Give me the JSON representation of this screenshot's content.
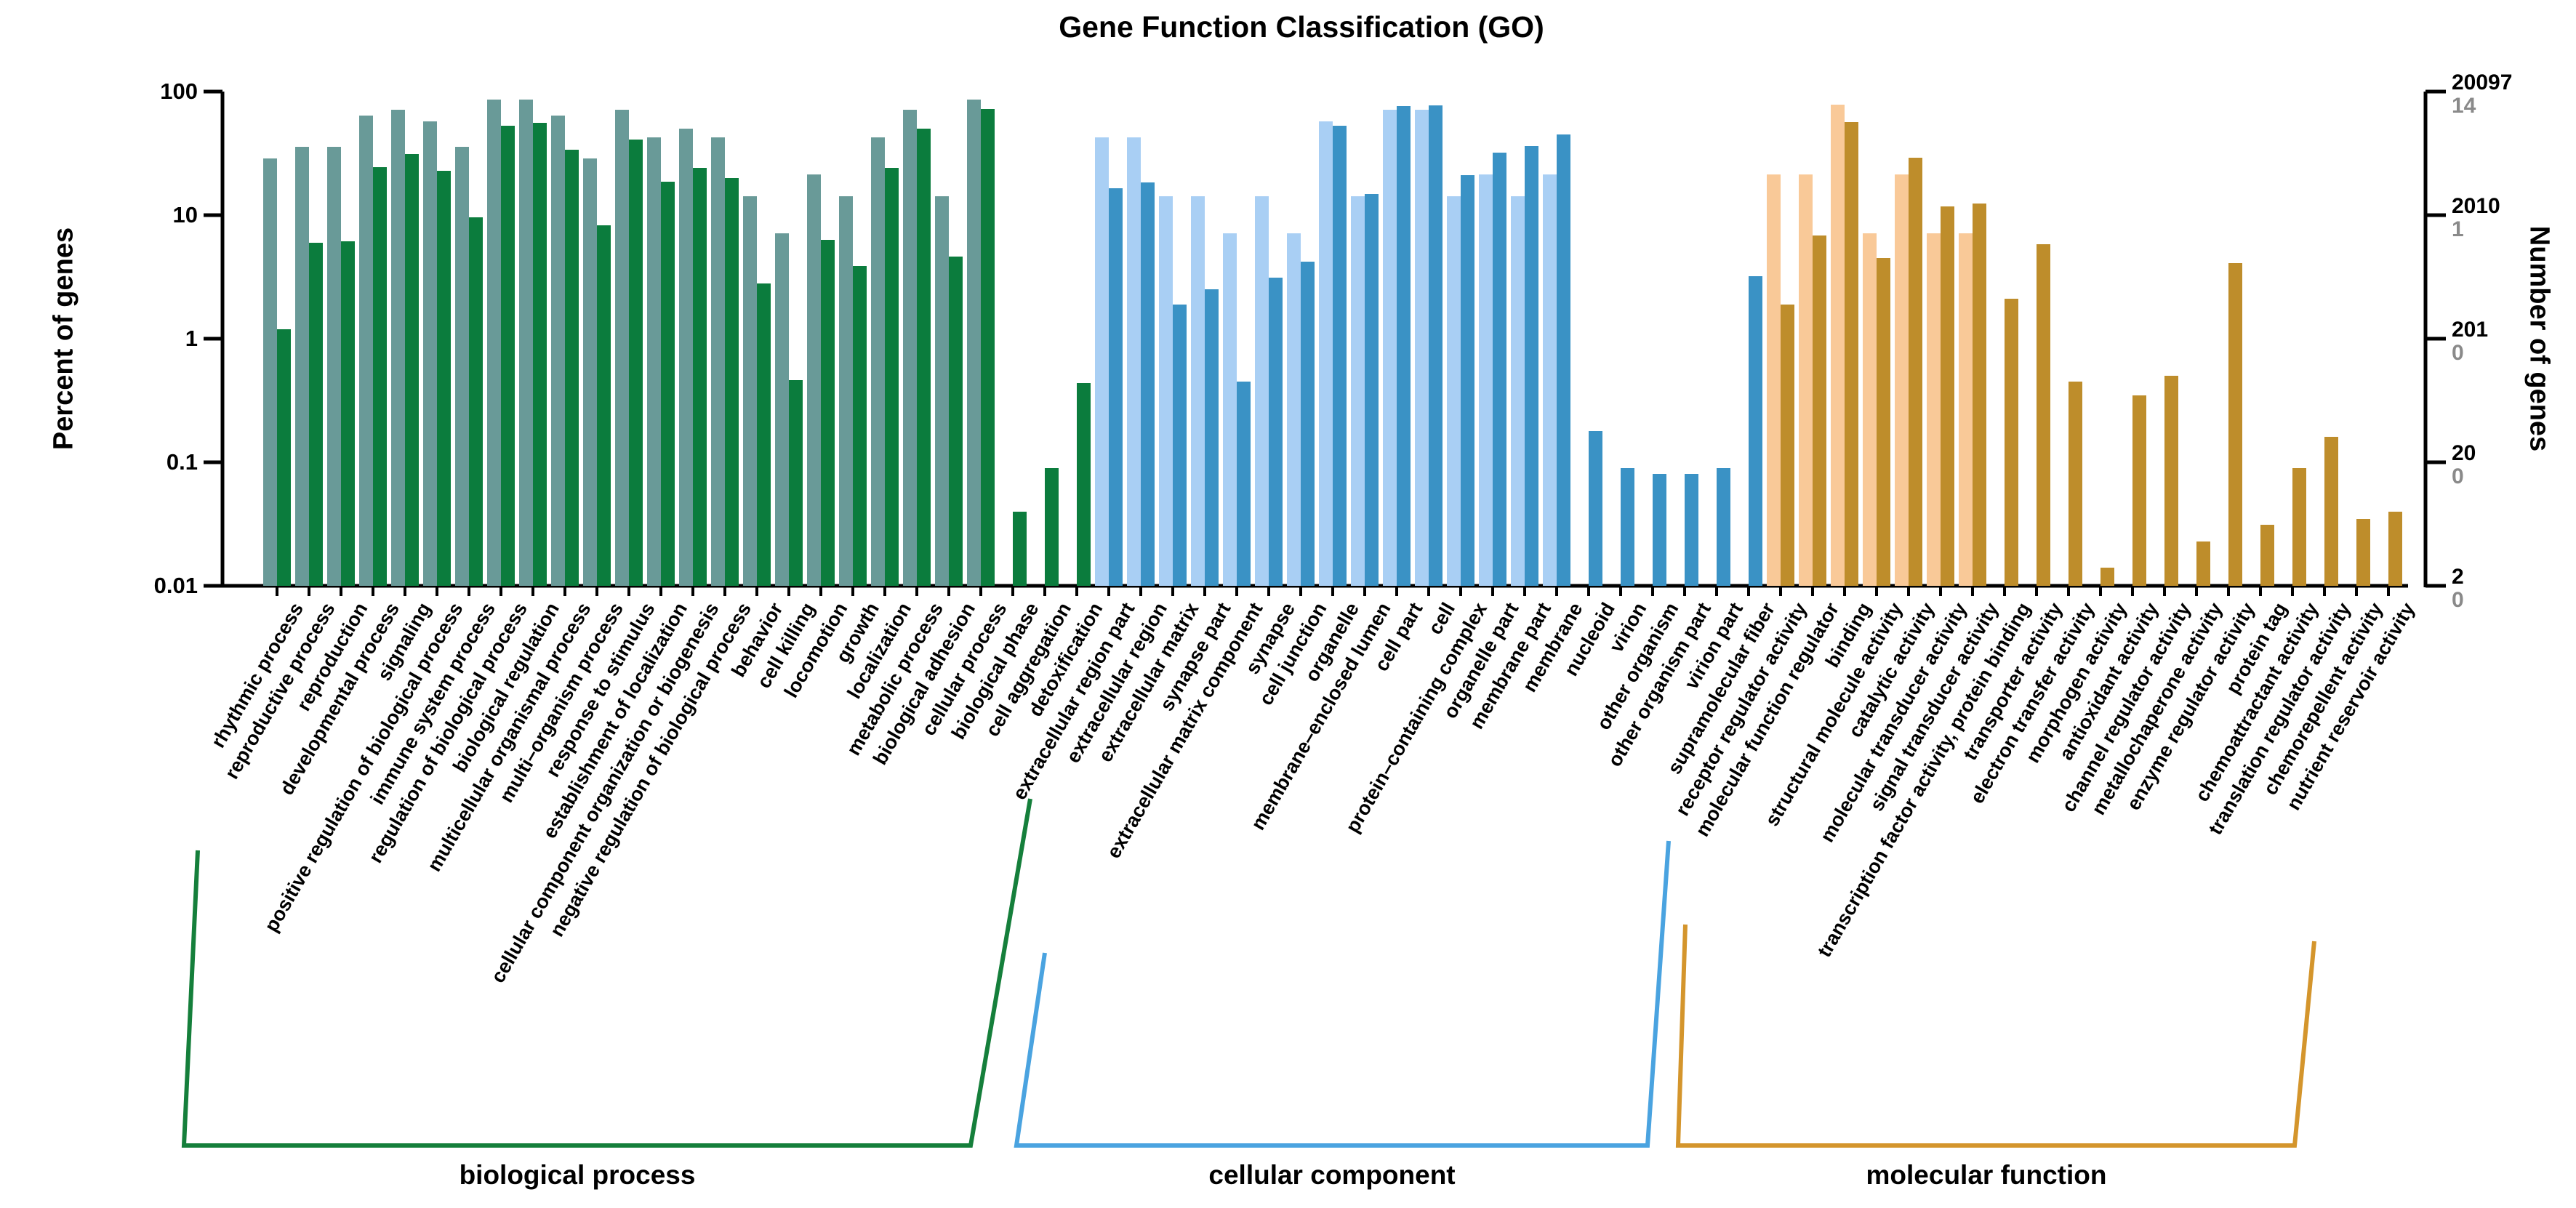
{
  "title": "Gene Function Classification (GO)",
  "chart_data": {
    "type": "bar",
    "title": "Gene Function Classification (GO)",
    "y_axis_left": {
      "label": "Percent of genes",
      "scale": "log",
      "range": [
        0.01,
        100
      ],
      "ticks": [
        "100",
        "10",
        "1",
        "0.1",
        "0.01"
      ]
    },
    "y_axis_right": {
      "label": "Number of genes",
      "ticks_black": [
        "20097",
        "2010",
        "201",
        "20",
        "2"
      ],
      "ticks_gray": [
        "14",
        "1",
        "0",
        "0",
        "0"
      ]
    },
    "grid": false,
    "legend": "none",
    "groups": [
      {
        "label": "biological process",
        "light_color": "#699A98",
        "dark_color": "#0B7C3D",
        "bracket_color": "#157F3B"
      },
      {
        "label": "cellular component",
        "light_color": "#A9CFF4",
        "dark_color": "#3A92C5",
        "bracket_color": "#4AA3E0"
      },
      {
        "label": "molecular function",
        "light_color": "#F9C998",
        "dark_color": "#BE8D2B",
        "bracket_color": "#D4952C"
      }
    ],
    "series_keys": [
      "light",
      "dark"
    ],
    "categories": [
      {
        "label": "rhythmic process",
        "group": 0,
        "light": 28.57,
        "dark": 1.2
      },
      {
        "label": "reproductive process",
        "group": 0,
        "light": 35.71,
        "dark": 6.0
      },
      {
        "label": "reproduction",
        "group": 0,
        "light": 35.71,
        "dark": 6.1
      },
      {
        "label": "developmental process",
        "group": 0,
        "light": 64.29,
        "dark": 24.5
      },
      {
        "label": "signaling",
        "group": 0,
        "light": 71.43,
        "dark": 31
      },
      {
        "label": "positive regulation of biological process",
        "group": 0,
        "light": 57.14,
        "dark": 23
      },
      {
        "label": "immune system process",
        "group": 0,
        "light": 35.71,
        "dark": 9.6
      },
      {
        "label": "regulation of biological process",
        "group": 0,
        "light": 85.71,
        "dark": 53
      },
      {
        "label": "biological regulation",
        "group": 0,
        "light": 85.71,
        "dark": 56
      },
      {
        "label": "multicellular organismal process",
        "group": 0,
        "light": 64.29,
        "dark": 34
      },
      {
        "label": "multi–organism process",
        "group": 0,
        "light": 28.57,
        "dark": 8.3
      },
      {
        "label": "response to stimulus",
        "group": 0,
        "light": 71.43,
        "dark": 41
      },
      {
        "label": "establishment of localization",
        "group": 0,
        "light": 42.86,
        "dark": 18.7
      },
      {
        "label": "cellular component organization or biogenesis",
        "group": 0,
        "light": 50,
        "dark": 24
      },
      {
        "label": "negative regulation of biological process",
        "group": 0,
        "light": 42.86,
        "dark": 20
      },
      {
        "label": "behavior",
        "group": 0,
        "light": 14.29,
        "dark": 2.8
      },
      {
        "label": "cell killing",
        "group": 0,
        "light": 7.14,
        "dark": 0.46
      },
      {
        "label": "locomotion",
        "group": 0,
        "light": 21.43,
        "dark": 6.3
      },
      {
        "label": "growth",
        "group": 0,
        "light": 14.29,
        "dark": 3.9
      },
      {
        "label": "localization",
        "group": 0,
        "light": 42.86,
        "dark": 24
      },
      {
        "label": "metabolic process",
        "group": 0,
        "light": 71.43,
        "dark": 50
      },
      {
        "label": "biological adhesion",
        "group": 0,
        "light": 14.29,
        "dark": 4.6
      },
      {
        "label": "cellular process",
        "group": 0,
        "light": 85.71,
        "dark": 72
      },
      {
        "label": "biological phase",
        "group": 0,
        "light": null,
        "dark": 0.04
      },
      {
        "label": "cell aggregation",
        "group": 0,
        "light": null,
        "dark": 0.09
      },
      {
        "label": "detoxification",
        "group": 0,
        "light": null,
        "dark": 0.44
      },
      {
        "label": "extracellular region part",
        "group": 1,
        "light": 42.86,
        "dark": 16.5
      },
      {
        "label": "extracellular region",
        "group": 1,
        "light": 42.86,
        "dark": 18.5
      },
      {
        "label": "extracellular matrix",
        "group": 1,
        "light": 14.29,
        "dark": 1.9
      },
      {
        "label": "synapse part",
        "group": 1,
        "light": 14.29,
        "dark": 2.5
      },
      {
        "label": "extracellular matrix component",
        "group": 1,
        "light": 7.14,
        "dark": 0.45
      },
      {
        "label": "synapse",
        "group": 1,
        "light": 14.29,
        "dark": 3.1
      },
      {
        "label": "cell junction",
        "group": 1,
        "light": 7.14,
        "dark": 4.2
      },
      {
        "label": "organelle",
        "group": 1,
        "light": 57.14,
        "dark": 53
      },
      {
        "label": "membrane–enclosed lumen",
        "group": 1,
        "light": 14.29,
        "dark": 14.8
      },
      {
        "label": "cell part",
        "group": 1,
        "light": 71.43,
        "dark": 76
      },
      {
        "label": "cell",
        "group": 1,
        "light": 71.43,
        "dark": 77
      },
      {
        "label": "protein–containing complex",
        "group": 1,
        "light": 14.29,
        "dark": 21
      },
      {
        "label": "organelle part",
        "group": 1,
        "light": 21.43,
        "dark": 32
      },
      {
        "label": "membrane part",
        "group": 1,
        "light": 14.29,
        "dark": 36
      },
      {
        "label": "membrane",
        "group": 1,
        "light": 21.43,
        "dark": 45
      },
      {
        "label": "nucleoid",
        "group": 1,
        "light": null,
        "dark": 0.18
      },
      {
        "label": "virion",
        "group": 1,
        "light": null,
        "dark": 0.09
      },
      {
        "label": "other organism",
        "group": 1,
        "light": null,
        "dark": 0.08
      },
      {
        "label": "other organism part",
        "group": 1,
        "light": null,
        "dark": 0.08
      },
      {
        "label": "virion part",
        "group": 1,
        "light": null,
        "dark": 0.09
      },
      {
        "label": "supramolecular fiber",
        "group": 1,
        "light": null,
        "dark": 3.2
      },
      {
        "label": "receptor regulator activity",
        "group": 2,
        "light": 21.43,
        "dark": 1.9
      },
      {
        "label": "molecular function regulator",
        "group": 2,
        "light": 21.43,
        "dark": 6.8
      },
      {
        "label": "binding",
        "group": 2,
        "light": 78.57,
        "dark": 57
      },
      {
        "label": "structural molecule activity",
        "group": 2,
        "light": 7.14,
        "dark": 4.5
      },
      {
        "label": "catalytic activity",
        "group": 2,
        "light": 21.43,
        "dark": 29
      },
      {
        "label": "molecular transducer activity",
        "group": 2,
        "light": 7.14,
        "dark": 11.8
      },
      {
        "label": "signal transducer activity",
        "group": 2,
        "light": 7.14,
        "dark": 12.4
      },
      {
        "label": "transcription factor activity, protein binding",
        "group": 2,
        "light": null,
        "dark": 2.1
      },
      {
        "label": "transporter activity",
        "group": 2,
        "light": null,
        "dark": 5.8
      },
      {
        "label": "electron transfer activity",
        "group": 2,
        "light": null,
        "dark": 0.45
      },
      {
        "label": "morphogen activity",
        "group": 2,
        "light": null,
        "dark": 0.014
      },
      {
        "label": "antioxidant activity",
        "group": 2,
        "light": null,
        "dark": 0.35
      },
      {
        "label": "channel regulator activity",
        "group": 2,
        "light": null,
        "dark": 0.5
      },
      {
        "label": "metallochaperone activity",
        "group": 2,
        "light": null,
        "dark": 0.023
      },
      {
        "label": "enzyme regulator activity",
        "group": 2,
        "light": null,
        "dark": 4.1
      },
      {
        "label": "protein tag",
        "group": 2,
        "light": null,
        "dark": 0.031
      },
      {
        "label": "chemoattractant activity",
        "group": 2,
        "light": null,
        "dark": 0.09
      },
      {
        "label": "translation regulator activity",
        "group": 2,
        "light": null,
        "dark": 0.16
      },
      {
        "label": "chemorepellent activity",
        "group": 2,
        "light": null,
        "dark": 0.035
      },
      {
        "label": "nutrient reservoir activity",
        "group": 2,
        "light": null,
        "dark": 0.04
      }
    ]
  }
}
